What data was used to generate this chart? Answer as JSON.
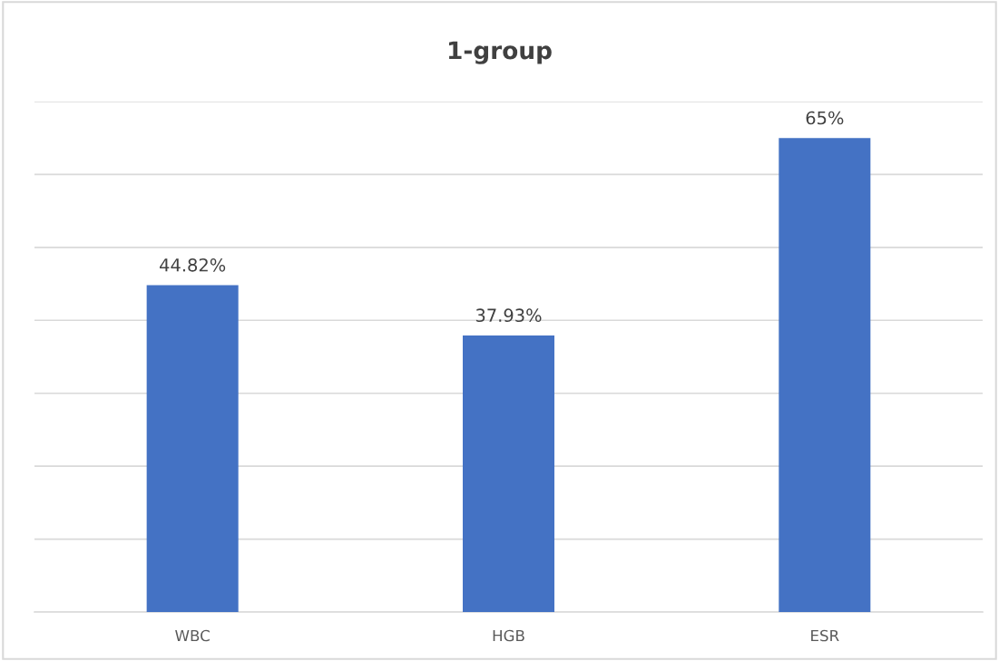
{
  "chart_data": {
    "type": "bar",
    "title": "1-group",
    "categories": [
      "WBC",
      "HGB",
      "ESR"
    ],
    "values": [
      44.82,
      37.93,
      65
    ],
    "value_labels": [
      "44.82%",
      "37.93%",
      "65%"
    ],
    "color": "#4472c4",
    "ylim": [
      0,
      70
    ],
    "yticks": [
      {
        "value": 0,
        "label": null
      },
      {
        "value": 10,
        "label": null
      },
      {
        "value": 20,
        "label": null
      },
      {
        "value": 30,
        "label": null
      },
      {
        "value": 40,
        "label": null
      },
      {
        "value": 50,
        "label": null
      },
      {
        "value": 60,
        "label": null
      },
      {
        "value": 70,
        "label": null
      }
    ],
    "tick_labels": "x",
    "grid": "y"
  }
}
